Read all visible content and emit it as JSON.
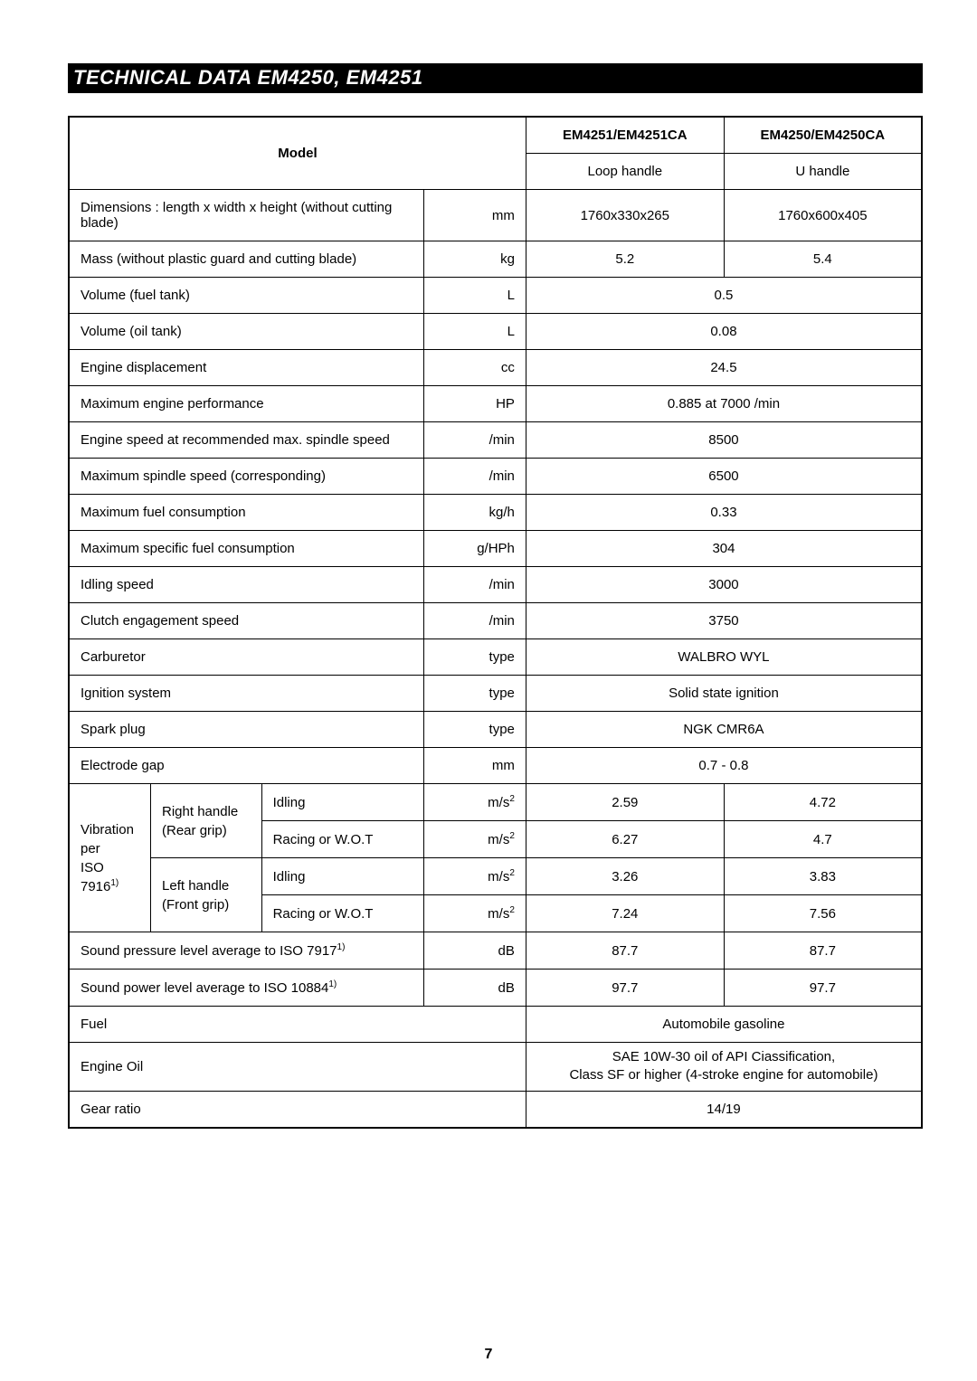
{
  "title": "TECHNICAL DATA EM4250, EM4251",
  "page_number": "7",
  "headers": {
    "model": "Model",
    "col1": "EM4251/EM4251CA",
    "col2": "EM4250/EM4250CA",
    "handle1": "Loop handle",
    "handle2": "U handle"
  },
  "rows": {
    "dimensions_label": "Dimensions : length x width x height (without cutting blade)",
    "dimensions_unit": "mm",
    "dimensions_v1": "1760x330x265",
    "dimensions_v2": "1760x600x405",
    "mass_label": "Mass (without plastic guard and cutting blade)",
    "mass_unit": "kg",
    "mass_v1": "5.2",
    "mass_v2": "5.4",
    "volume_fuel_label": "Volume (fuel tank)",
    "volume_fuel_unit": "L",
    "volume_fuel_value": "0.5",
    "volume_oil_label": "Volume (oil tank)",
    "volume_oil_unit": "L",
    "volume_oil_value": "0.08",
    "engine_disp_label": "Engine displacement",
    "engine_disp_unit": "cc",
    "engine_disp_value": "24.5",
    "max_perf_label": "Maximum engine performance",
    "max_perf_unit": "HP",
    "max_perf_value": "0.885 at 7000 /min",
    "engine_speed_label": "Engine speed at recommended max. spindle speed",
    "engine_speed_unit": "/min",
    "engine_speed_value": "8500",
    "max_spindle_label": "Maximum spindle speed (corresponding)",
    "max_spindle_unit": "/min",
    "max_spindle_value": "6500",
    "max_fuel_label": "Maximum fuel consumption",
    "max_fuel_unit": "kg/h",
    "max_fuel_value": "0.33",
    "max_spec_fuel_label": "Maximum specific fuel consumption",
    "max_spec_fuel_unit": "g/HPh",
    "max_spec_fuel_value": "304",
    "idling_speed_label": "Idling speed",
    "idling_speed_unit": "/min",
    "idling_speed_value": "3000",
    "clutch_label": "Clutch engagement speed",
    "clutch_unit": "/min",
    "clutch_value": "3750",
    "carburetor_label": "Carburetor",
    "carburetor_unit": "type",
    "carburetor_value": "WALBRO WYL",
    "ignition_label": "Ignition system",
    "ignition_unit": "type",
    "ignition_value": "Solid state ignition",
    "spark_label": "Spark plug",
    "spark_unit": "type",
    "spark_value": "NGK CMR6A",
    "electrode_label": "Electrode gap",
    "electrode_unit": "mm",
    "electrode_value": "0.7 - 0.8",
    "vibration_label_line1": "Vibration  per",
    "vibration_label_line2_pre": "ISO 7916",
    "vibration_label_line2_sup": "1)",
    "right_handle_line1": "Right handle",
    "right_handle_line2": "(Rear grip)",
    "left_handle_line1": "Left handle",
    "left_handle_line2": "(Front grip)",
    "idling": "Idling",
    "racing": "Racing or W.O.T",
    "ms2_pre": "m/s",
    "ms2_sup": "2",
    "vib_rh_idling_v1": "2.59",
    "vib_rh_idling_v2": "4.72",
    "vib_rh_racing_v1": "6.27",
    "vib_rh_racing_v2": "4.7",
    "vib_lh_idling_v1": "3.26",
    "vib_lh_idling_v2": "3.83",
    "vib_lh_racing_v1": "7.24",
    "vib_lh_racing_v2": "7.56",
    "sound_pressure_label_pre": "Sound pressure level average to ISO 7917",
    "sound_pressure_label_sup": "1)",
    "sound_pressure_unit": "dB",
    "sound_pressure_v1": "87.7",
    "sound_pressure_v2": "87.7",
    "sound_power_label_pre": "Sound power level average to ISO 10884",
    "sound_power_label_sup": "1)",
    "sound_power_unit": "dB",
    "sound_power_v1": "97.7",
    "sound_power_v2": "97.7",
    "fuel_label": "Fuel",
    "fuel_value": "Automobile gasoline",
    "engine_oil_label": "Engine Oil",
    "engine_oil_value_line1": "SAE 10W-30 oil of API Ciassification,",
    "engine_oil_value_line2": "Class SF or higher (4-stroke engine for automobile)",
    "gear_ratio_label": "Gear ratio",
    "gear_ratio_value": "14/19"
  }
}
